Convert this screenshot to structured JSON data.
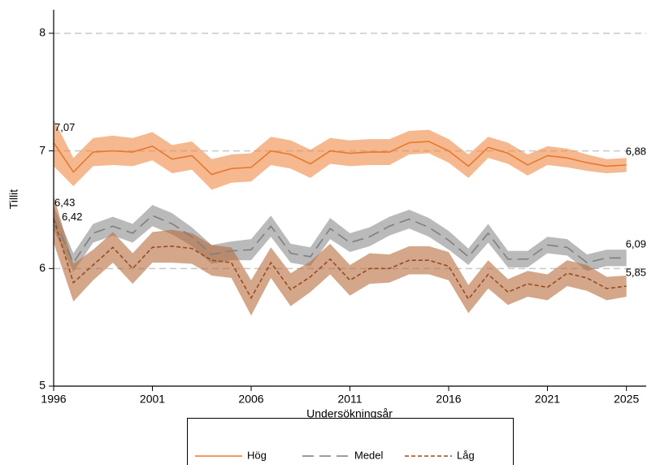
{
  "chart_data": {
    "type": "line",
    "x_label": "Undersökningsår",
    "y_label": "Tillit",
    "x": [
      1996,
      1997,
      1998,
      1999,
      2000,
      2001,
      2002,
      2003,
      2004,
      2005,
      2006,
      2007,
      2008,
      2009,
      2010,
      2011,
      2012,
      2013,
      2014,
      2015,
      2016,
      2017,
      2018,
      2019,
      2020,
      2021,
      2022,
      2023,
      2024,
      2025
    ],
    "xlim": [
      1996,
      2026
    ],
    "xticks": [
      1996,
      2001,
      2006,
      2011,
      2016,
      2021,
      2025
    ],
    "ylim": [
      5,
      8.2
    ],
    "yticks": [
      5,
      6,
      7,
      8
    ],
    "grid": true,
    "legend": "bottom",
    "series": [
      {
        "name": "Hög",
        "color": "#e8782e",
        "band_color": "#f08a45",
        "dash": "solid",
        "values": [
          7.07,
          6.82,
          6.99,
          7.0,
          6.99,
          7.04,
          6.93,
          6.96,
          6.8,
          6.85,
          6.86,
          7.0,
          6.97,
          6.89,
          7.0,
          6.98,
          6.99,
          6.99,
          7.07,
          7.08,
          7.0,
          6.87,
          7.03,
          6.98,
          6.88,
          6.96,
          6.94,
          6.9,
          6.87,
          6.88
        ],
        "lower": [
          6.87,
          6.7,
          6.87,
          6.88,
          6.87,
          6.92,
          6.81,
          6.84,
          6.67,
          6.73,
          6.74,
          6.88,
          6.85,
          6.77,
          6.89,
          6.87,
          6.88,
          6.88,
          6.97,
          6.98,
          6.9,
          6.77,
          6.94,
          6.89,
          6.79,
          6.88,
          6.86,
          6.83,
          6.81,
          6.82
        ],
        "upper": [
          7.27,
          6.94,
          7.11,
          7.13,
          7.11,
          7.16,
          7.05,
          7.08,
          6.93,
          6.97,
          6.98,
          7.12,
          7.09,
          7.01,
          7.11,
          7.09,
          7.1,
          7.1,
          7.17,
          7.18,
          7.1,
          6.97,
          7.12,
          7.07,
          6.97,
          7.04,
          7.02,
          6.97,
          6.93,
          6.94
        ],
        "value_labels": [
          "7,07",
          null,
          null,
          null,
          null,
          null,
          null,
          null,
          null,
          null,
          null,
          null,
          null,
          null,
          null,
          null,
          null,
          null,
          null,
          null,
          null,
          null,
          null,
          null,
          null,
          null,
          null,
          null,
          null,
          "6,88"
        ]
      },
      {
        "name": "Medel",
        "color": "#7f7f7f",
        "band_color": "#8c8c8c",
        "dash": "long",
        "values": [
          6.43,
          6.05,
          6.3,
          6.36,
          6.3,
          6.45,
          6.38,
          6.27,
          6.12,
          6.15,
          6.16,
          6.36,
          6.13,
          6.1,
          6.34,
          6.22,
          6.27,
          6.36,
          6.42,
          6.35,
          6.24,
          6.1,
          6.3,
          6.08,
          6.08,
          6.2,
          6.18,
          6.05,
          6.09,
          6.09
        ],
        "lower": [
          6.33,
          5.97,
          6.22,
          6.28,
          6.22,
          6.36,
          6.29,
          6.19,
          6.04,
          6.07,
          6.07,
          6.27,
          6.05,
          6.02,
          6.25,
          6.14,
          6.19,
          6.28,
          6.34,
          6.27,
          6.16,
          6.03,
          6.22,
          6.01,
          6.01,
          6.13,
          6.11,
          5.98,
          6.02,
          6.02
        ],
        "upper": [
          6.53,
          6.13,
          6.38,
          6.44,
          6.38,
          6.54,
          6.47,
          6.35,
          6.2,
          6.23,
          6.25,
          6.45,
          6.21,
          6.18,
          6.43,
          6.3,
          6.35,
          6.44,
          6.5,
          6.43,
          6.32,
          6.17,
          6.38,
          6.15,
          6.15,
          6.27,
          6.25,
          6.12,
          6.16,
          6.16
        ],
        "value_labels": [
          "6,43",
          null,
          null,
          null,
          null,
          null,
          null,
          null,
          null,
          null,
          null,
          null,
          null,
          null,
          null,
          null,
          null,
          null,
          null,
          null,
          null,
          null,
          null,
          null,
          null,
          null,
          null,
          null,
          null,
          "6,09"
        ]
      },
      {
        "name": "Låg",
        "color": "#9b4a1e",
        "band_color": "#b86d3c",
        "dash": "short",
        "values": [
          6.42,
          5.88,
          6.03,
          6.18,
          6.0,
          6.18,
          6.19,
          6.17,
          6.07,
          6.05,
          5.75,
          6.05,
          5.82,
          5.93,
          6.08,
          5.9,
          6.0,
          6.0,
          6.07,
          6.07,
          6.02,
          5.74,
          5.95,
          5.8,
          5.87,
          5.84,
          5.96,
          5.92,
          5.83,
          5.85
        ],
        "lower": [
          6.22,
          5.72,
          5.9,
          6.05,
          5.87,
          6.05,
          6.05,
          6.04,
          5.94,
          5.92,
          5.6,
          5.92,
          5.68,
          5.8,
          5.95,
          5.77,
          5.87,
          5.88,
          5.95,
          5.95,
          5.9,
          5.62,
          5.83,
          5.69,
          5.76,
          5.73,
          5.85,
          5.81,
          5.73,
          5.76
        ],
        "upper": [
          6.62,
          6.04,
          6.16,
          6.31,
          6.13,
          6.31,
          6.33,
          6.3,
          6.2,
          6.18,
          5.9,
          6.18,
          5.96,
          6.06,
          6.21,
          6.03,
          6.13,
          6.12,
          6.19,
          6.19,
          6.14,
          5.86,
          6.07,
          5.91,
          5.98,
          5.95,
          6.07,
          6.03,
          5.93,
          5.94
        ],
        "value_labels": [
          "6,42",
          null,
          null,
          null,
          null,
          null,
          null,
          null,
          null,
          null,
          null,
          null,
          null,
          null,
          null,
          null,
          null,
          null,
          null,
          null,
          null,
          null,
          null,
          null,
          null,
          null,
          null,
          null,
          null,
          "5,85"
        ]
      }
    ]
  }
}
